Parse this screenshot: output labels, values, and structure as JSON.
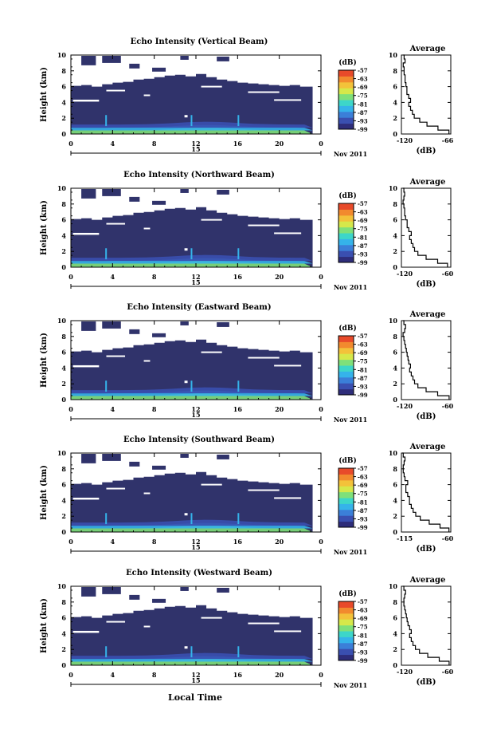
{
  "colors": {
    "background_echo": "#30336b",
    "colorbar": [
      "#2e2d7a",
      "#3a4fb0",
      "#3b7fd8",
      "#35b3ea",
      "#3dd6c9",
      "#7fe07a",
      "#d6e84a",
      "#f3c23a",
      "#f28a2e",
      "#e84a2a"
    ]
  },
  "common": {
    "time_ticks": [
      "0",
      "4",
      "8",
      "12",
      "16",
      "20",
      "0"
    ],
    "day_label": "15",
    "month_label": "Nov 2011",
    "height_ticks": [
      "0",
      "2",
      "4",
      "6",
      "8",
      "10"
    ],
    "ylabel": "Height (km)",
    "unit_label": "(dB)",
    "colorbar_ticks": [
      "-57",
      "-63",
      "-69",
      "-75",
      "-81",
      "-87",
      "-93",
      "-99"
    ],
    "avg_title": "Average",
    "avg_unit": "(dB)",
    "xlabel": "Local Time"
  },
  "chart_data": [
    {
      "type": "heatmap",
      "title": "Echo Intensity (Vertical Beam)",
      "x_range": [
        0,
        24
      ],
      "y_range": [
        0,
        10
      ],
      "clim": [
        -99,
        -57
      ],
      "avg_profile": {
        "xlim": [
          -120,
          -66
        ],
        "xticks": [
          "-120",
          "-66"
        ],
        "heights": [
          0,
          0.5,
          1,
          1.5,
          2,
          2.5,
          3,
          3.5,
          4,
          4.5,
          5,
          5.5,
          6,
          6.5,
          7,
          7.5,
          8,
          8.5,
          9,
          9.5,
          10
        ],
        "values": [
          -68,
          -80,
          -92,
          -100,
          -106,
          -108,
          -110,
          -112,
          -110,
          -112,
          -114,
          -114,
          -115,
          -116,
          -116,
          -117,
          -117,
          -118,
          -116,
          -117,
          -118
        ]
      }
    },
    {
      "type": "heatmap",
      "title": "Echo Intensity (Northward Beam)",
      "x_range": [
        0,
        24
      ],
      "y_range": [
        0,
        10
      ],
      "clim": [
        -99,
        -57
      ],
      "avg_profile": {
        "xlim": [
          -120,
          -60
        ],
        "xticks": [
          "-120",
          "-60"
        ],
        "heights": [
          0,
          0.5,
          1,
          1.5,
          2,
          2.5,
          3,
          3.5,
          4,
          4.5,
          5,
          5.5,
          6,
          6.5,
          7,
          7.5,
          8,
          8.5,
          9,
          9.5,
          10
        ],
        "values": [
          -64,
          -76,
          -90,
          -100,
          -104,
          -106,
          -108,
          -110,
          -108,
          -111,
          -113,
          -113,
          -115,
          -116,
          -116,
          -117,
          -118,
          -117,
          -116,
          -117,
          -118
        ]
      }
    },
    {
      "type": "heatmap",
      "title": "Echo Intensity (Eastward Beam)",
      "x_range": [
        0,
        24
      ],
      "y_range": [
        0,
        10
      ],
      "clim": [
        -99,
        -57
      ],
      "avg_profile": {
        "xlim": [
          -120,
          -60
        ],
        "xticks": [
          "-120",
          "-60"
        ],
        "heights": [
          0,
          0.5,
          1,
          1.5,
          2,
          2.5,
          3,
          3.5,
          4,
          4.5,
          5,
          5.5,
          6,
          6.5,
          7,
          7.5,
          8,
          8.5,
          9,
          9.5,
          10
        ],
        "values": [
          -62,
          -76,
          -90,
          -100,
          -104,
          -106,
          -108,
          -110,
          -109,
          -111,
          -112,
          -113,
          -114,
          -115,
          -116,
          -117,
          -118,
          -116,
          -115,
          -117,
          -118
        ]
      }
    },
    {
      "type": "heatmap",
      "title": "Echo Intensity (Southward Beam)",
      "x_range": [
        0,
        24
      ],
      "y_range": [
        0,
        10
      ],
      "clim": [
        -99,
        -57
      ],
      "avg_profile": {
        "xlim": [
          -115,
          -60
        ],
        "xticks": [
          "-115",
          "-60"
        ],
        "heights": [
          0,
          0.5,
          1,
          1.5,
          2,
          2.5,
          3,
          3.5,
          4,
          4.5,
          5,
          5.5,
          6,
          6.5,
          7,
          7.5,
          8,
          8.5,
          9,
          9.5,
          10
        ],
        "values": [
          -62,
          -72,
          -84,
          -94,
          -99,
          -102,
          -104,
          -106,
          -106,
          -108,
          -110,
          -110,
          -108,
          -111,
          -112,
          -113,
          -113,
          -112,
          -111,
          -113,
          -114
        ]
      }
    },
    {
      "type": "heatmap",
      "title": "Echo Intensity (Westward Beam)",
      "x_range": [
        0,
        24
      ],
      "y_range": [
        0,
        10
      ],
      "clim": [
        -99,
        -57
      ],
      "avg_profile": {
        "xlim": [
          -120,
          -60
        ],
        "xticks": [
          "-120",
          "-60"
        ],
        "heights": [
          0,
          0.5,
          1,
          1.5,
          2,
          2.5,
          3,
          3.5,
          4,
          4.5,
          5,
          5.5,
          6,
          6.5,
          7,
          7.5,
          8,
          8.5,
          9,
          9.5,
          10
        ],
        "values": [
          -62,
          -74,
          -88,
          -98,
          -103,
          -106,
          -108,
          -110,
          -108,
          -110,
          -112,
          -113,
          -114,
          -115,
          -116,
          -117,
          -117,
          -116,
          -115,
          -117,
          -118
        ]
      }
    }
  ]
}
